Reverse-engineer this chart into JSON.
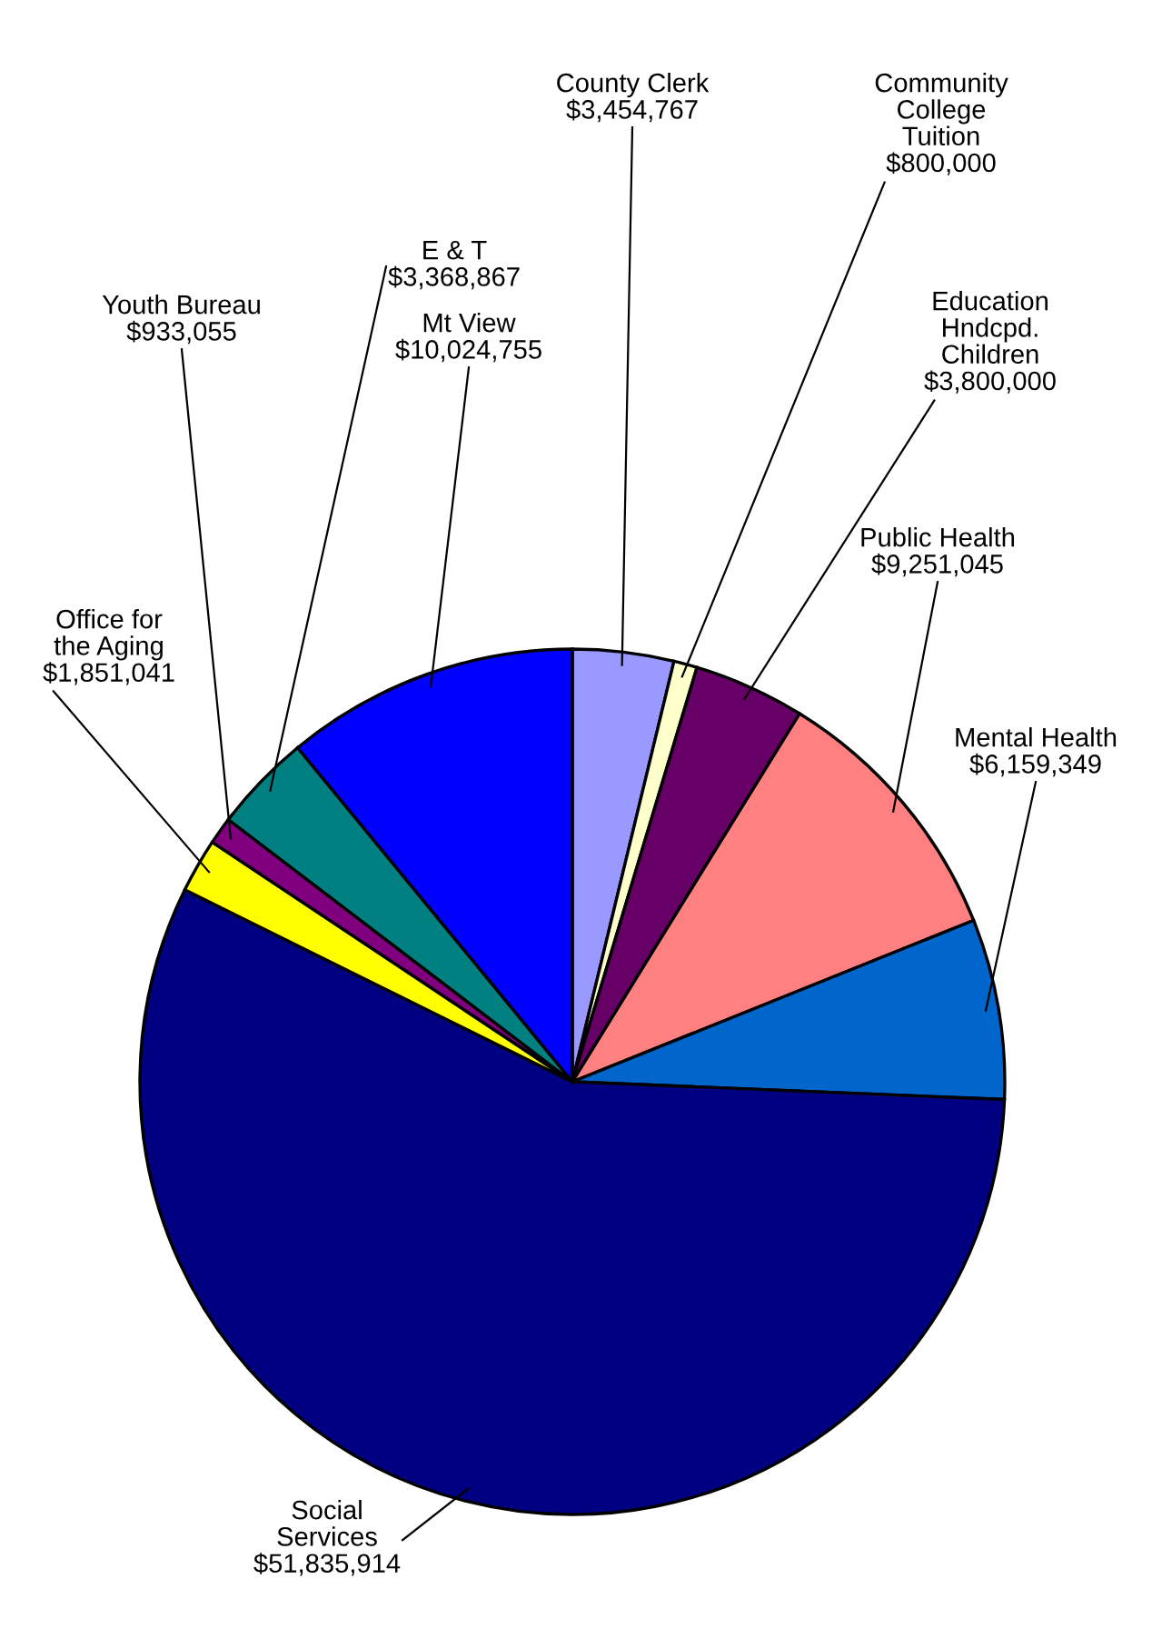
{
  "chart_data": {
    "type": "pie",
    "categories": [
      "County Clerk",
      "Community\nCollege\nTuition",
      "Education\nHndcpd.\nChildren",
      "Public Health",
      "Mental Health",
      "Social\nServices",
      "Office for\nthe Aging",
      "Youth Bureau",
      "E & T",
      "Mt View"
    ],
    "values": [
      3454767,
      800000,
      3800000,
      9251045,
      6159349,
      51835914,
      1851041,
      933055,
      3368867,
      10024755
    ],
    "value_labels": [
      "$3,454,767",
      "$800,000",
      "$3,800,000",
      "$9,251,045",
      "$6,159,349",
      "$51,835,914",
      "$1,851,041",
      "$933,055",
      "$3,368,867",
      "$10,024,755"
    ],
    "colors": [
      "#9999ff",
      "#ffffcc",
      "#660066",
      "#ff8080",
      "#0066cc",
      "#000080",
      "#ffff00",
      "#800080",
      "#008080",
      "#0000ff"
    ],
    "legend": false
  }
}
